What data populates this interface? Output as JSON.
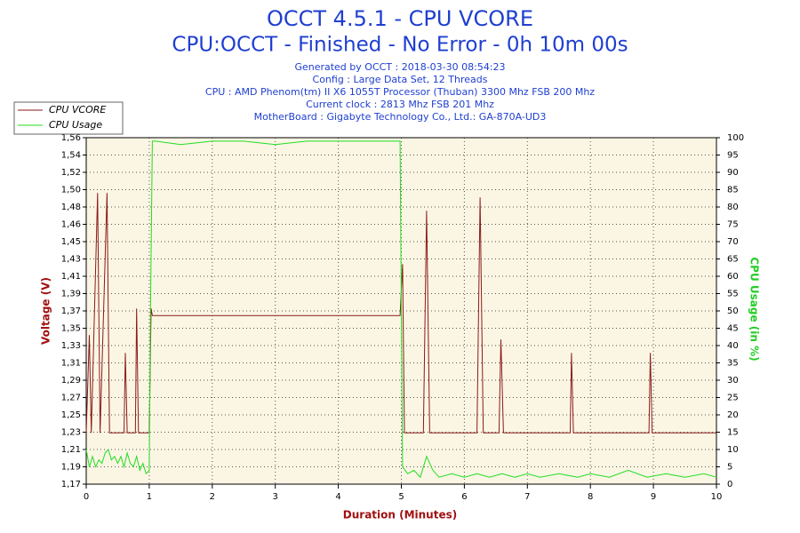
{
  "chart_data": {
    "type": "line",
    "title": "OCCT 4.5.1 - CPU VCORE",
    "subtitle": "CPU:OCCT - Finished - No Error - 0h 10m 00s",
    "notes": [
      "Generated by OCCT : 2018-03-30 08:54:23",
      "Config : Large Data Set, 12 Threads",
      "CPU : AMD Phenom(tm) II X6 1055T Processor (Thuban) 3300 Mhz FSB 200 Mhz",
      "Current clock : 2813 Mhz FSB 201 Mhz",
      "MotherBoard : Gigabyte Technology Co., Ltd.: GA-870A-UD3"
    ],
    "xlabel": "Duration (Minutes)",
    "ylabel": "Voltage (V)",
    "y2label": "CPU Usage (in %)",
    "xlim": [
      0,
      10
    ],
    "xticks": [
      0,
      1,
      2,
      3,
      4,
      5,
      6,
      7,
      8,
      9,
      10
    ],
    "ylim": [
      1.1722,
      1.5622
    ],
    "yticks": [
      {
        "value": 1.1722,
        "label": "1,17"
      },
      {
        "value": 1.1917,
        "label": "1,19"
      },
      {
        "value": 1.2112,
        "label": "1,21"
      },
      {
        "value": 1.2307,
        "label": "1,23"
      },
      {
        "value": 1.2502,
        "label": "1,25"
      },
      {
        "value": 1.2697,
        "label": "1,27"
      },
      {
        "value": 1.2892,
        "label": "1,29"
      },
      {
        "value": 1.3087,
        "label": "1,31"
      },
      {
        "value": 1.3282,
        "label": "1,33"
      },
      {
        "value": 1.3477,
        "label": "1,35"
      },
      {
        "value": 1.3672,
        "label": "1,37"
      },
      {
        "value": 1.3867,
        "label": "1,39"
      },
      {
        "value": 1.4062,
        "label": "1,41"
      },
      {
        "value": 1.4257,
        "label": "1,43"
      },
      {
        "value": 1.4452,
        "label": "1,45"
      },
      {
        "value": 1.4647,
        "label": "1,46"
      },
      {
        "value": 1.4842,
        "label": "1,48"
      },
      {
        "value": 1.5037,
        "label": "1,50"
      },
      {
        "value": 1.5232,
        "label": "1,52"
      },
      {
        "value": 1.5427,
        "label": "1,54"
      },
      {
        "value": 1.5622,
        "label": "1,56"
      }
    ],
    "y2lim": [
      0,
      100
    ],
    "y2ticks": [
      0,
      5,
      10,
      15,
      20,
      25,
      30,
      35,
      40,
      45,
      50,
      55,
      60,
      65,
      70,
      75,
      80,
      85,
      90,
      95,
      100
    ],
    "grid": true,
    "legend": "top-left",
    "series": [
      {
        "name": "CPU VCORE",
        "color": "#8b1a1a",
        "axis": "y",
        "x": [
          0,
          0.05,
          0.08,
          0.18,
          0.22,
          0.33,
          0.37,
          0.6,
          0.62,
          0.65,
          0.78,
          0.8,
          0.83,
          1.0,
          1.03,
          1.05,
          4.98,
          5.02,
          5.05,
          5.35,
          5.4,
          5.45,
          6.2,
          6.25,
          6.3,
          6.55,
          6.58,
          6.62,
          7.68,
          7.7,
          7.73,
          8.93,
          8.95,
          8.98,
          10
        ],
        "values": [
          1.23,
          1.34,
          1.23,
          1.5,
          1.23,
          1.5,
          1.23,
          1.23,
          1.32,
          1.23,
          1.23,
          1.37,
          1.23,
          1.23,
          1.37,
          1.362,
          1.362,
          1.42,
          1.23,
          1.23,
          1.48,
          1.23,
          1.23,
          1.495,
          1.23,
          1.23,
          1.335,
          1.23,
          1.23,
          1.32,
          1.23,
          1.23,
          1.32,
          1.23,
          1.23
        ]
      },
      {
        "name": "CPU Usage",
        "color": "#22dd22",
        "axis": "y2",
        "x": [
          0,
          0.05,
          0.1,
          0.15,
          0.2,
          0.25,
          0.3,
          0.35,
          0.4,
          0.45,
          0.5,
          0.55,
          0.6,
          0.65,
          0.7,
          0.75,
          0.8,
          0.85,
          0.9,
          0.95,
          1.0,
          1.02,
          1.05,
          1.1,
          1.5,
          2,
          2.5,
          3,
          3.5,
          4,
          4.5,
          4.98,
          5.0,
          5.02,
          5.1,
          5.2,
          5.3,
          5.4,
          5.5,
          5.6,
          5.8,
          6,
          6.2,
          6.4,
          6.6,
          6.8,
          7,
          7.2,
          7.5,
          7.8,
          8,
          8.3,
          8.6,
          8.9,
          9.2,
          9.5,
          9.8,
          10
        ],
        "values": [
          10,
          5,
          8,
          5,
          7,
          6,
          9,
          10,
          7,
          8,
          6,
          8,
          5,
          9,
          6,
          5,
          8,
          4,
          6,
          3,
          4,
          50,
          99,
          99,
          98,
          99,
          99,
          98,
          99,
          99,
          99,
          99,
          50,
          5,
          3,
          4,
          2,
          8,
          4,
          2,
          3,
          2,
          3,
          2,
          3,
          2,
          3,
          2,
          3,
          2,
          3,
          2,
          4,
          2,
          3,
          2,
          3,
          2
        ]
      }
    ]
  }
}
